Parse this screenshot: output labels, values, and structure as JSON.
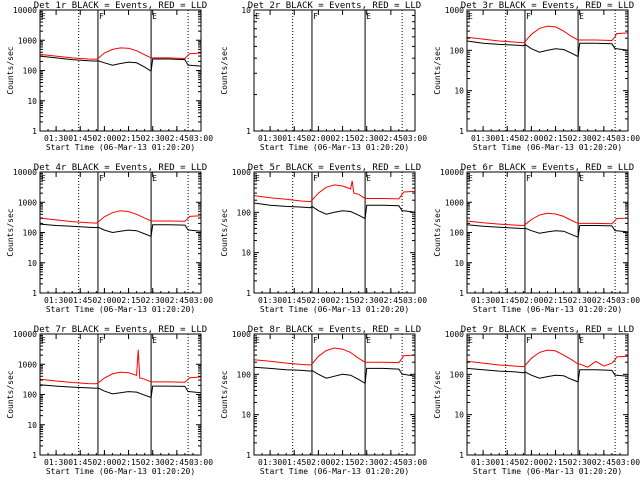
{
  "figure": {
    "start_label": "Start Time (06-Mar-13 01:20:20)",
    "ylabel": "Counts/sec",
    "xticks": [
      "01:30",
      "01:45",
      "02:00",
      "02:15",
      "02:30",
      "02:45",
      "03:00"
    ],
    "xtick_minutes": [
      10,
      25,
      40,
      55,
      70,
      85,
      100
    ],
    "xlim_minutes": [
      0,
      100
    ],
    "colors": {
      "events": "#000000",
      "lld": "#ff0000",
      "axes": "#000000"
    }
  },
  "chart_data": [
    {
      "type": "line",
      "title": "Det 1r BLACK = Events, RED = LLD",
      "ylim": [
        1,
        10000
      ],
      "yticks": [
        "1",
        "10",
        "100",
        "1000",
        "10000"
      ],
      "ytick_values": [
        1,
        10,
        100,
        1000,
        10000
      ],
      "marker_labels": [
        "E",
        "F",
        "E"
      ],
      "solid_lines_min": [
        36,
        69
      ],
      "dotted_lines_min": [
        24,
        92
      ],
      "events": {
        "x": [
          0,
          10,
          20,
          30,
          35,
          36,
          40,
          45,
          50,
          55,
          60,
          65,
          69,
          70,
          80,
          90,
          92,
          93,
          100
        ],
        "y": [
          300,
          260,
          230,
          210,
          205,
          210,
          180,
          150,
          170,
          190,
          180,
          130,
          95,
          240,
          240,
          230,
          150,
          150,
          140
        ]
      },
      "lld": {
        "x": [
          0,
          10,
          20,
          30,
          35,
          36,
          40,
          45,
          50,
          55,
          60,
          65,
          69,
          70,
          80,
          90,
          92,
          93,
          100
        ],
        "y": [
          340,
          300,
          260,
          240,
          235,
          250,
          380,
          500,
          560,
          540,
          450,
          330,
          260,
          260,
          260,
          250,
          320,
          360,
          380
        ]
      }
    },
    {
      "type": "line",
      "title": "Det 2r BLACK = Events, RED = LLD",
      "ylim": [
        1,
        10
      ],
      "yticks": [
        "1",
        "10"
      ],
      "ytick_values": [
        1,
        10
      ],
      "marker_labels": [
        "E",
        "F",
        "E"
      ],
      "solid_lines_min": [
        36,
        69
      ],
      "dotted_lines_min": [
        24,
        92
      ],
      "events": {
        "x": [],
        "y": []
      },
      "lld": {
        "x": [],
        "y": []
      }
    },
    {
      "type": "line",
      "title": "Det 3r BLACK = Events, RED = LLD",
      "ylim": [
        1,
        1000
      ],
      "yticks": [
        "1",
        "10",
        "100",
        "1000"
      ],
      "ytick_values": [
        1,
        10,
        100,
        1000
      ],
      "marker_labels": [
        "E",
        "F",
        "E"
      ],
      "solid_lines_min": [
        36,
        69
      ],
      "dotted_lines_min": [
        24,
        92
      ],
      "events": {
        "x": [
          0,
          10,
          20,
          30,
          35,
          36,
          40,
          45,
          50,
          55,
          60,
          65,
          69,
          70,
          80,
          90,
          92,
          93,
          100
        ],
        "y": [
          170,
          150,
          140,
          135,
          130,
          140,
          110,
          90,
          100,
          110,
          105,
          85,
          70,
          150,
          150,
          145,
          110,
          110,
          100
        ]
      },
      "lld": {
        "x": [
          0,
          10,
          20,
          30,
          35,
          36,
          40,
          45,
          50,
          55,
          60,
          65,
          69,
          70,
          80,
          90,
          92,
          93,
          100
        ],
        "y": [
          210,
          190,
          170,
          160,
          155,
          165,
          250,
          350,
          400,
          380,
          300,
          220,
          180,
          180,
          180,
          175,
          220,
          260,
          270
        ]
      }
    },
    {
      "type": "line",
      "title": "Det 4r BLACK = Events, RED = LLD",
      "ylim": [
        1,
        10000
      ],
      "yticks": [
        "1",
        "10",
        "100",
        "1000",
        "10000"
      ],
      "ytick_values": [
        1,
        10,
        100,
        1000,
        10000
      ],
      "marker_labels": [
        "E",
        "F",
        "E"
      ],
      "solid_lines_min": [
        36,
        69
      ],
      "dotted_lines_min": [
        24,
        92
      ],
      "events": {
        "x": [
          0,
          10,
          20,
          30,
          35,
          36,
          40,
          45,
          50,
          55,
          60,
          65,
          69,
          70,
          80,
          90,
          92,
          93,
          100
        ],
        "y": [
          190,
          170,
          160,
          150,
          145,
          150,
          120,
          100,
          110,
          120,
          115,
          90,
          75,
          180,
          180,
          175,
          120,
          120,
          110
        ]
      },
      "lld": {
        "x": [
          0,
          10,
          20,
          30,
          35,
          36,
          40,
          45,
          50,
          55,
          60,
          65,
          69,
          70,
          80,
          90,
          92,
          93,
          100
        ],
        "y": [
          300,
          260,
          230,
          210,
          205,
          220,
          330,
          450,
          520,
          490,
          400,
          300,
          240,
          240,
          240,
          235,
          300,
          340,
          360
        ]
      }
    },
    {
      "type": "line",
      "title": "Det 5r BLACK = Events, RED = LLD",
      "ylim": [
        1,
        1000
      ],
      "yticks": [
        "1",
        "10",
        "100",
        "1000"
      ],
      "ytick_values": [
        1,
        10,
        100,
        1000
      ],
      "marker_labels": [
        "E",
        "F",
        "E"
      ],
      "solid_lines_min": [
        36,
        69
      ],
      "dotted_lines_min": [
        24,
        92
      ],
      "events": {
        "x": [
          0,
          10,
          20,
          30,
          35,
          36,
          40,
          45,
          50,
          55,
          60,
          65,
          69,
          70,
          80,
          90,
          92,
          93,
          100
        ],
        "y": [
          170,
          150,
          140,
          135,
          130,
          140,
          110,
          90,
          100,
          110,
          105,
          85,
          70,
          150,
          150,
          145,
          110,
          110,
          100
        ]
      },
      "lld": {
        "x": [
          0,
          10,
          20,
          30,
          35,
          36,
          40,
          45,
          50,
          55,
          60,
          61,
          62,
          65,
          69,
          70,
          80,
          90,
          92,
          93,
          100
        ],
        "y": [
          260,
          230,
          210,
          190,
          185,
          200,
          300,
          420,
          480,
          450,
          380,
          600,
          300,
          280,
          220,
          220,
          220,
          215,
          280,
          320,
          330
        ]
      }
    },
    {
      "type": "line",
      "title": "Det 6r BLACK = Events, RED = LLD",
      "ylim": [
        1,
        10000
      ],
      "yticks": [
        "1",
        "10",
        "100",
        "1000",
        "10000"
      ],
      "ytick_values": [
        1,
        10,
        100,
        1000,
        10000
      ],
      "marker_labels": [
        "E",
        "F",
        "E"
      ],
      "solid_lines_min": [
        36,
        69
      ],
      "dotted_lines_min": [
        24,
        92
      ],
      "events": {
        "x": [
          0,
          10,
          20,
          30,
          35,
          36,
          40,
          45,
          50,
          55,
          60,
          65,
          69,
          70,
          80,
          90,
          92,
          93,
          100
        ],
        "y": [
          180,
          160,
          150,
          140,
          135,
          140,
          115,
          95,
          105,
          115,
          110,
          85,
          70,
          170,
          170,
          165,
          115,
          115,
          105
        ]
      },
      "lld": {
        "x": [
          0,
          10,
          20,
          30,
          35,
          36,
          40,
          45,
          50,
          55,
          60,
          65,
          69,
          70,
          80,
          90,
          92,
          93,
          100
        ],
        "y": [
          240,
          210,
          190,
          175,
          170,
          180,
          270,
          380,
          430,
          410,
          340,
          250,
          200,
          200,
          200,
          195,
          250,
          290,
          300
        ]
      }
    },
    {
      "type": "line",
      "title": "Det 7r BLACK = Events, RED = LLD",
      "ylim": [
        1,
        10000
      ],
      "yticks": [
        "1",
        "10",
        "100",
        "1000",
        "10000"
      ],
      "ytick_values": [
        1,
        10,
        100,
        1000,
        10000
      ],
      "marker_labels": [
        "E",
        "F",
        "E"
      ],
      "solid_lines_min": [
        36,
        69
      ],
      "dotted_lines_min": [
        24,
        92
      ],
      "events": {
        "x": [
          0,
          10,
          20,
          30,
          35,
          36,
          40,
          45,
          50,
          55,
          60,
          65,
          69,
          70,
          80,
          90,
          92,
          93,
          100
        ],
        "y": [
          210,
          190,
          175,
          165,
          160,
          165,
          130,
          105,
          115,
          125,
          120,
          95,
          80,
          190,
          190,
          185,
          125,
          125,
          115
        ]
      },
      "lld": {
        "x": [
          0,
          10,
          20,
          30,
          35,
          36,
          40,
          45,
          50,
          55,
          60,
          61,
          62,
          65,
          69,
          70,
          80,
          90,
          92,
          93,
          100
        ],
        "y": [
          320,
          280,
          250,
          230,
          225,
          240,
          350,
          480,
          550,
          520,
          430,
          3000,
          350,
          320,
          260,
          260,
          260,
          255,
          320,
          360,
          380
        ]
      }
    },
    {
      "type": "line",
      "title": "Det 8r BLACK = Events, RED = LLD",
      "ylim": [
        1,
        1000
      ],
      "yticks": [
        "1",
        "10",
        "100",
        "1000"
      ],
      "ytick_values": [
        1,
        10,
        100,
        1000
      ],
      "marker_labels": [
        "E",
        "F",
        "E"
      ],
      "solid_lines_min": [
        36,
        69
      ],
      "dotted_lines_min": [
        24,
        92
      ],
      "events": {
        "x": [
          0,
          10,
          20,
          30,
          35,
          36,
          40,
          45,
          50,
          55,
          60,
          65,
          69,
          70,
          80,
          90,
          92,
          93,
          100
        ],
        "y": [
          150,
          140,
          130,
          125,
          120,
          125,
          100,
          80,
          90,
          100,
          95,
          75,
          60,
          140,
          140,
          135,
          100,
          100,
          90
        ]
      },
      "lld": {
        "x": [
          0,
          10,
          20,
          30,
          35,
          36,
          40,
          45,
          50,
          55,
          60,
          65,
          69,
          70,
          80,
          90,
          92,
          93,
          100
        ],
        "y": [
          230,
          210,
          190,
          175,
          170,
          180,
          280,
          390,
          450,
          420,
          350,
          250,
          200,
          200,
          200,
          195,
          250,
          290,
          300
        ]
      }
    },
    {
      "type": "line",
      "title": "Det 9r BLACK = Events, RED = LLD",
      "ylim": [
        1,
        1000
      ],
      "yticks": [
        "1",
        "10",
        "100",
        "1000"
      ],
      "ytick_values": [
        1,
        10,
        100,
        1000
      ],
      "marker_labels": [
        "E",
        "F",
        "E"
      ],
      "solid_lines_min": [
        36,
        69
      ],
      "dotted_lines_min": [
        24,
        92
      ],
      "events": {
        "x": [
          0,
          10,
          20,
          30,
          35,
          36,
          40,
          45,
          50,
          55,
          60,
          65,
          69,
          70,
          80,
          90,
          92,
          93,
          100
        ],
        "y": [
          140,
          130,
          120,
          115,
          110,
          115,
          95,
          80,
          88,
          95,
          92,
          75,
          65,
          130,
          130,
          125,
          95,
          95,
          90
        ]
      },
      "lld": {
        "x": [
          0,
          10,
          20,
          30,
          35,
          36,
          40,
          45,
          50,
          55,
          60,
          65,
          69,
          70,
          75,
          80,
          85,
          90,
          92,
          93,
          100
        ],
        "y": [
          210,
          190,
          170,
          160,
          155,
          165,
          250,
          350,
          400,
          380,
          300,
          230,
          180,
          180,
          150,
          210,
          160,
          190,
          230,
          270,
          280
        ]
      }
    }
  ]
}
